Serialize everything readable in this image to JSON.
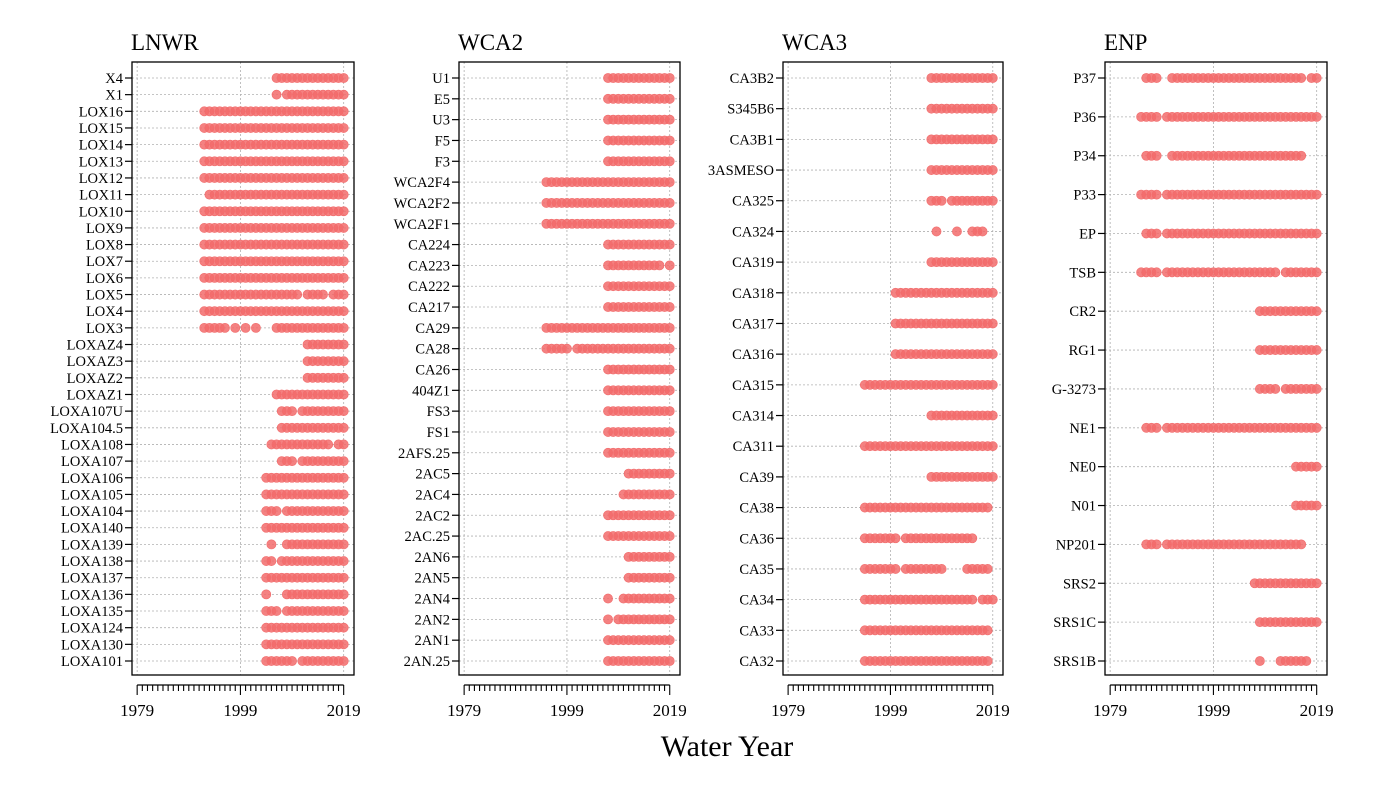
{
  "chart_data": {
    "type": "scatter",
    "xlabel": "Water Year",
    "xlim": [
      1978,
      2021
    ],
    "xticks": [
      1979,
      1999,
      2019
    ],
    "grid": true,
    "marker_color": "#f26b6b",
    "panels": [
      {
        "title": "LNWR",
        "stations": [
          {
            "name": "X4",
            "years": "2006-2019"
          },
          {
            "name": "X1",
            "years": "2006,2008-2019"
          },
          {
            "name": "LOX16",
            "years": "1992-2019"
          },
          {
            "name": "LOX15",
            "years": "1992-2019"
          },
          {
            "name": "LOX14",
            "years": "1992-2019"
          },
          {
            "name": "LOX13",
            "years": "1992-2019"
          },
          {
            "name": "LOX12",
            "years": "1992-2019"
          },
          {
            "name": "LOX11",
            "years": "1993-2019"
          },
          {
            "name": "LOX10",
            "years": "1992-1997,1998-2019"
          },
          {
            "name": "LOX9",
            "years": "1992-2019"
          },
          {
            "name": "LOX8",
            "years": "1992-2019"
          },
          {
            "name": "LOX7",
            "years": "1992-2019"
          },
          {
            "name": "LOX6",
            "years": "1992-2019"
          },
          {
            "name": "LOX5",
            "years": "1992-1999,2000,2001-2003,2004-2010,2012-2015,2017-2019"
          },
          {
            "name": "LOX4",
            "years": "1992-1997,1998-2019"
          },
          {
            "name": "LOX3",
            "years": "1992-1996,1998,2000,2002,2006-2007,2008-2011,2012-2019"
          },
          {
            "name": "LOXAZ4",
            "years": "2012-2019"
          },
          {
            "name": "LOXAZ3",
            "years": "2012-2019"
          },
          {
            "name": "LOXAZ2",
            "years": "2012-2019"
          },
          {
            "name": "LOXAZ1",
            "years": "2006-2019"
          },
          {
            "name": "LOXA107U",
            "years": "2007-2009,2011-2019"
          },
          {
            "name": "LOXA104.5",
            "years": "2007-2019"
          },
          {
            "name": "LOXA108",
            "years": "2005,2006-2009,2010-2012,2013-2016,2018,2019"
          },
          {
            "name": "LOXA107",
            "years": "2007-2009,2011-2019"
          },
          {
            "name": "LOXA106",
            "years": "2004-2007,2008-2019"
          },
          {
            "name": "LOXA105",
            "years": "2004-2006,2007-2019"
          },
          {
            "name": "LOXA104",
            "years": "2004-2006,2008-2019"
          },
          {
            "name": "LOXA140",
            "years": "2004-2007,2008-2010,2011-2019"
          },
          {
            "name": "LOXA139",
            "years": "2005,2008-2009,2010-2013,2014-2016,2017-2019"
          },
          {
            "name": "LOXA138",
            "years": "2004-2005,2007-2009,2010-2019"
          },
          {
            "name": "LOXA137",
            "years": "2004-2005,2006-2019"
          },
          {
            "name": "LOXA136",
            "years": "2004,2008-2019"
          },
          {
            "name": "LOXA135",
            "years": "2004-2006,2008-2019"
          },
          {
            "name": "LOXA124",
            "years": "2004-2006,2007-2019"
          },
          {
            "name": "LOXA130",
            "years": "2004-2006,2007-2019"
          },
          {
            "name": "LOXA101",
            "years": "2004-2006,2007-2009,2011-2019"
          }
        ]
      },
      {
        "title": "WCA2",
        "stations": [
          {
            "name": "U1",
            "years": "2007-2019"
          },
          {
            "name": "E5",
            "years": "2007-2019"
          },
          {
            "name": "U3",
            "years": "2007-2019"
          },
          {
            "name": "F5",
            "years": "2007-2019"
          },
          {
            "name": "F3",
            "years": "2007-2008,2009-2016,2017-2019"
          },
          {
            "name": "WCA2F4",
            "years": "1995-2019"
          },
          {
            "name": "WCA2F2",
            "years": "1995-2019"
          },
          {
            "name": "WCA2F1",
            "years": "1995-2019"
          },
          {
            "name": "CA224",
            "years": "2007-2019"
          },
          {
            "name": "CA223",
            "years": "2007-2008,2009-2011,2012-2017,2019"
          },
          {
            "name": "CA222",
            "years": "2007-2019"
          },
          {
            "name": "CA217",
            "years": "2007-2019"
          },
          {
            "name": "CA29",
            "years": "1995-2019"
          },
          {
            "name": "CA28",
            "years": "1995-1999,2001-2019"
          },
          {
            "name": "CA26",
            "years": "2007-2019"
          },
          {
            "name": "404Z1",
            "years": "2007-2019"
          },
          {
            "name": "FS3",
            "years": "2007-2019"
          },
          {
            "name": "FS1",
            "years": "2007-2019"
          },
          {
            "name": "2AFS.25",
            "years": "2007-2019"
          },
          {
            "name": "2AC5",
            "years": "2011-2019"
          },
          {
            "name": "2AC4",
            "years": "2010,2011-2019"
          },
          {
            "name": "2AC2",
            "years": "2007-2008,2009-2010,2011-2019"
          },
          {
            "name": "2AC.25",
            "years": "2007-2008,2009-2019"
          },
          {
            "name": "2AN6",
            "years": "2011-2019"
          },
          {
            "name": "2AN5",
            "years": "2011-2019"
          },
          {
            "name": "2AN4",
            "years": "2007,2010-2019"
          },
          {
            "name": "2AN2",
            "years": "2007,2009-2010,2011-2019"
          },
          {
            "name": "2AN1",
            "years": "2007-2019"
          },
          {
            "name": "2AN.25",
            "years": "2007-2019"
          }
        ]
      },
      {
        "title": "WCA3",
        "stations": [
          {
            "name": "CA3B2",
            "years": "2007-2019"
          },
          {
            "name": "S345B6",
            "years": "2007-2019"
          },
          {
            "name": "CA3B1",
            "years": "2007-2019"
          },
          {
            "name": "3ASMESO",
            "years": "2007-2019"
          },
          {
            "name": "CA325",
            "years": "2007-2009,2011-2019"
          },
          {
            "name": "CA324",
            "years": "2008,2012,2015-2017"
          },
          {
            "name": "CA319",
            "years": "2007-2019"
          },
          {
            "name": "CA318",
            "years": "2000-2019"
          },
          {
            "name": "CA317",
            "years": "2000-2019"
          },
          {
            "name": "CA316",
            "years": "2000-2019"
          },
          {
            "name": "CA315",
            "years": "1994-2019"
          },
          {
            "name": "CA314",
            "years": "2007-2019"
          },
          {
            "name": "CA311",
            "years": "1994-2019"
          },
          {
            "name": "CA39",
            "years": "2007-2019"
          },
          {
            "name": "CA38",
            "years": "1994-2018"
          },
          {
            "name": "CA36",
            "years": "1994-2000,2002-2004,2005-2015"
          },
          {
            "name": "CA35",
            "years": "1994-2000,2002-2006,2007-2009,2014-2016,2017-2018"
          },
          {
            "name": "CA34",
            "years": "1994-2015,2017-2019"
          },
          {
            "name": "CA33",
            "years": "1994-2012,2013-2018"
          },
          {
            "name": "CA32",
            "years": "1994-2018"
          }
        ]
      },
      {
        "title": "ENP",
        "stations": [
          {
            "name": "P37",
            "years": "1986-1988,1991-2002,2003-2007,2008-2016,2018-2019"
          },
          {
            "name": "P36",
            "years": "1985-1988,1990-2019"
          },
          {
            "name": "P34",
            "years": "1986-1988,1991-2003,2004-2016"
          },
          {
            "name": "P33",
            "years": "1985-1988,1990-2019"
          },
          {
            "name": "EP",
            "years": "1986-1988,1990-1991,1992-1993,1994-2003,2004-2005,2006-2015,2016-2019"
          },
          {
            "name": "TSB",
            "years": "1985-1988,1990-2009,2010-2011,2013-2016,2017-2019"
          },
          {
            "name": "CR2",
            "years": "2008-2019"
          },
          {
            "name": "RG1",
            "years": "2008-2019"
          },
          {
            "name": "G-3273",
            "years": "2008-2011,2013-2019"
          },
          {
            "name": "NE1",
            "years": "1986-1988,1990-2019"
          },
          {
            "name": "NE0",
            "years": "2015-2019"
          },
          {
            "name": "N01",
            "years": "2015-2019"
          },
          {
            "name": "NP201",
            "years": "1986-1988,1990-2016"
          },
          {
            "name": "SRS2",
            "years": "2007-2019"
          },
          {
            "name": "SRS1C",
            "years": "2008-2019"
          },
          {
            "name": "SRS1B",
            "years": "2008,2012-2014,2015-2017"
          }
        ]
      }
    ]
  }
}
